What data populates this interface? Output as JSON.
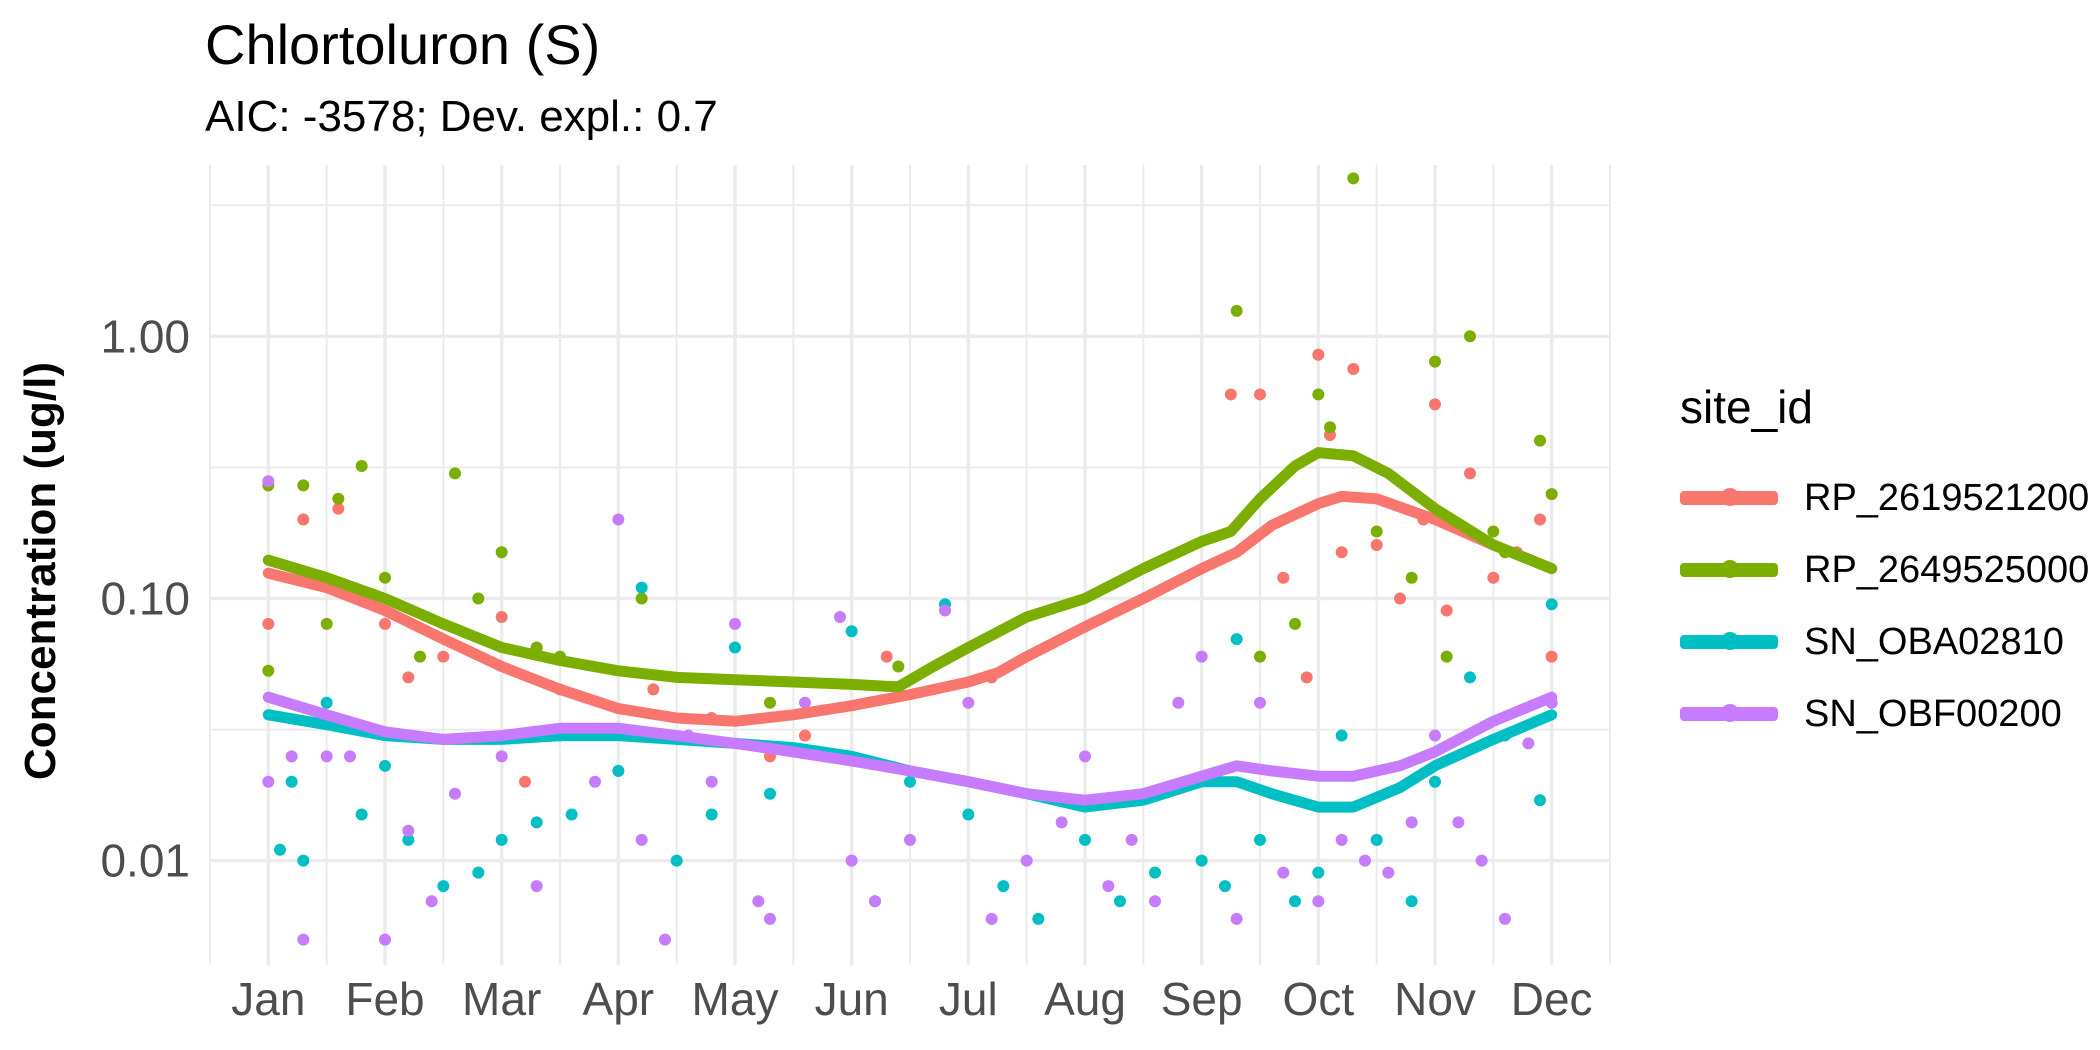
{
  "chart_data": {
    "type": "scatter",
    "title": "Chlortoluron (S)",
    "subtitle": "AIC: -3578; Dev. expl.: 0.7",
    "ylabel": "Concentration (ug/l)",
    "xlabel": "",
    "y_scale": "log10",
    "ylim": [
      0.004,
      4.5
    ],
    "y_ticks": [
      {
        "value": 1.0,
        "label": "1.00"
      },
      {
        "value": 0.1,
        "label": "0.10"
      },
      {
        "value": 0.01,
        "label": "0.01"
      }
    ],
    "x_ticks": [
      {
        "value": 1,
        "label": "Jan"
      },
      {
        "value": 2,
        "label": "Feb"
      },
      {
        "value": 3,
        "label": "Mar"
      },
      {
        "value": 4,
        "label": "Apr"
      },
      {
        "value": 5,
        "label": "May"
      },
      {
        "value": 6,
        "label": "Jun"
      },
      {
        "value": 7,
        "label": "Jul"
      },
      {
        "value": 8,
        "label": "Aug"
      },
      {
        "value": 9,
        "label": "Sep"
      },
      {
        "value": 10,
        "label": "Oct"
      },
      {
        "value": 11,
        "label": "Nov"
      },
      {
        "value": 12,
        "label": "Dec"
      }
    ],
    "xlim": [
      0.5,
      12.5
    ],
    "grid": true,
    "legend": {
      "title": "site_id",
      "position": "right"
    },
    "series": [
      {
        "name": "RP_2619521200",
        "color": "#F8766D",
        "trend": [
          [
            1.0,
            0.125
          ],
          [
            1.5,
            0.11
          ],
          [
            2.0,
            0.09
          ],
          [
            2.5,
            0.07
          ],
          [
            3.0,
            0.055
          ],
          [
            3.5,
            0.045
          ],
          [
            4.0,
            0.038
          ],
          [
            4.5,
            0.035
          ],
          [
            5.0,
            0.034
          ],
          [
            5.5,
            0.036
          ],
          [
            6.0,
            0.039
          ],
          [
            6.5,
            0.043
          ],
          [
            7.0,
            0.048
          ],
          [
            7.25,
            0.052
          ],
          [
            7.5,
            0.06
          ],
          [
            8.0,
            0.078
          ],
          [
            8.5,
            0.1
          ],
          [
            9.0,
            0.13
          ],
          [
            9.3,
            0.15
          ],
          [
            9.6,
            0.19
          ],
          [
            10.0,
            0.23
          ],
          [
            10.2,
            0.245
          ],
          [
            10.5,
            0.24
          ],
          [
            11.0,
            0.2
          ],
          [
            11.5,
            0.16
          ],
          [
            12.0,
            0.13
          ]
        ],
        "points": [
          [
            1.0,
            0.08
          ],
          [
            1.3,
            0.2
          ],
          [
            1.6,
            0.22
          ],
          [
            1.9,
            0.1
          ],
          [
            2.0,
            0.08
          ],
          [
            2.2,
            0.05
          ],
          [
            2.5,
            0.06
          ],
          [
            3.0,
            0.085
          ],
          [
            3.2,
            0.02
          ],
          [
            3.5,
            0.045
          ],
          [
            4.0,
            0.022
          ],
          [
            4.3,
            0.045
          ],
          [
            4.8,
            0.035
          ],
          [
            5.3,
            0.025
          ],
          [
            5.6,
            0.03
          ],
          [
            6.3,
            0.06
          ],
          [
            7.2,
            0.05
          ],
          [
            9.25,
            0.6
          ],
          [
            9.5,
            0.6
          ],
          [
            9.7,
            0.12
          ],
          [
            9.9,
            0.05
          ],
          [
            10.0,
            0.85
          ],
          [
            10.1,
            0.42
          ],
          [
            10.2,
            0.15
          ],
          [
            10.3,
            0.75
          ],
          [
            10.5,
            0.16
          ],
          [
            10.7,
            0.1
          ],
          [
            10.9,
            0.2
          ],
          [
            11.0,
            0.55
          ],
          [
            11.1,
            0.09
          ],
          [
            11.3,
            0.3
          ],
          [
            11.5,
            0.12
          ],
          [
            11.7,
            0.15
          ],
          [
            11.9,
            0.2
          ],
          [
            12.0,
            0.06
          ]
        ]
      },
      {
        "name": "RP_2649525000",
        "color": "#7CAE00",
        "trend": [
          [
            1.0,
            0.14
          ],
          [
            1.5,
            0.12
          ],
          [
            2.0,
            0.1
          ],
          [
            2.5,
            0.08
          ],
          [
            3.0,
            0.065
          ],
          [
            3.5,
            0.058
          ],
          [
            4.0,
            0.053
          ],
          [
            4.5,
            0.05
          ],
          [
            5.0,
            0.049
          ],
          [
            5.5,
            0.048
          ],
          [
            6.0,
            0.047
          ],
          [
            6.4,
            0.046
          ],
          [
            6.7,
            0.055
          ],
          [
            7.0,
            0.065
          ],
          [
            7.5,
            0.085
          ],
          [
            8.0,
            0.1
          ],
          [
            8.5,
            0.13
          ],
          [
            9.0,
            0.165
          ],
          [
            9.25,
            0.18
          ],
          [
            9.5,
            0.24
          ],
          [
            9.8,
            0.32
          ],
          [
            10.0,
            0.36
          ],
          [
            10.3,
            0.35
          ],
          [
            10.6,
            0.3
          ],
          [
            11.0,
            0.22
          ],
          [
            11.5,
            0.16
          ],
          [
            12.0,
            0.13
          ]
        ],
        "points": [
          [
            1.0,
            0.27
          ],
          [
            1.0,
            0.053
          ],
          [
            1.3,
            0.27
          ],
          [
            1.5,
            0.08
          ],
          [
            1.6,
            0.24
          ],
          [
            1.8,
            0.32
          ],
          [
            2.0,
            0.12
          ],
          [
            2.3,
            0.06
          ],
          [
            2.6,
            0.3
          ],
          [
            2.8,
            0.1
          ],
          [
            3.0,
            0.15
          ],
          [
            3.3,
            0.065
          ],
          [
            3.5,
            0.06
          ],
          [
            4.2,
            0.1
          ],
          [
            5.3,
            0.04
          ],
          [
            6.4,
            0.055
          ],
          [
            9.3,
            1.25
          ],
          [
            9.5,
            0.06
          ],
          [
            9.8,
            0.08
          ],
          [
            10.0,
            0.6
          ],
          [
            10.1,
            0.45
          ],
          [
            10.3,
            4.0
          ],
          [
            10.5,
            0.18
          ],
          [
            10.8,
            0.12
          ],
          [
            11.0,
            0.8
          ],
          [
            11.1,
            0.06
          ],
          [
            11.3,
            1.0
          ],
          [
            11.5,
            0.18
          ],
          [
            11.6,
            0.15
          ],
          [
            11.9,
            0.4
          ],
          [
            12.0,
            0.25
          ]
        ]
      },
      {
        "name": "SN_OBA02810",
        "color": "#00BFC4",
        "trend": [
          [
            1.0,
            0.036
          ],
          [
            1.5,
            0.033
          ],
          [
            2.0,
            0.03
          ],
          [
            2.5,
            0.029
          ],
          [
            3.0,
            0.029
          ],
          [
            3.5,
            0.03
          ],
          [
            4.0,
            0.03
          ],
          [
            4.5,
            0.029
          ],
          [
            5.0,
            0.028
          ],
          [
            5.5,
            0.027
          ],
          [
            6.0,
            0.025
          ],
          [
            6.5,
            0.022
          ],
          [
            7.0,
            0.02
          ],
          [
            7.5,
            0.018
          ],
          [
            8.0,
            0.016
          ],
          [
            8.5,
            0.017
          ],
          [
            9.0,
            0.02
          ],
          [
            9.3,
            0.02
          ],
          [
            9.6,
            0.018
          ],
          [
            10.0,
            0.016
          ],
          [
            10.3,
            0.016
          ],
          [
            10.7,
            0.019
          ],
          [
            11.0,
            0.023
          ],
          [
            11.5,
            0.029
          ],
          [
            12.0,
            0.036
          ]
        ],
        "points": [
          [
            1.1,
            0.011
          ],
          [
            1.2,
            0.02
          ],
          [
            1.3,
            0.01
          ],
          [
            1.5,
            0.04
          ],
          [
            1.8,
            0.015
          ],
          [
            2.0,
            0.023
          ],
          [
            2.2,
            0.012
          ],
          [
            2.5,
            0.008
          ],
          [
            2.8,
            0.009
          ],
          [
            3.0,
            0.012
          ],
          [
            3.3,
            0.014
          ],
          [
            3.6,
            0.015
          ],
          [
            4.0,
            0.022
          ],
          [
            4.2,
            0.11
          ],
          [
            4.5,
            0.01
          ],
          [
            4.8,
            0.015
          ],
          [
            5.0,
            0.065
          ],
          [
            5.3,
            0.018
          ],
          [
            5.8,
            0.025
          ],
          [
            6.0,
            0.075
          ],
          [
            6.2,
            0.007
          ],
          [
            6.5,
            0.02
          ],
          [
            6.8,
            0.095
          ],
          [
            7.0,
            0.015
          ],
          [
            7.3,
            0.008
          ],
          [
            7.6,
            0.006
          ],
          [
            8.0,
            0.012
          ],
          [
            8.3,
            0.007
          ],
          [
            8.6,
            0.009
          ],
          [
            9.0,
            0.01
          ],
          [
            9.2,
            0.008
          ],
          [
            9.3,
            0.07
          ],
          [
            9.5,
            0.012
          ],
          [
            9.8,
            0.007
          ],
          [
            10.0,
            0.009
          ],
          [
            10.2,
            0.03
          ],
          [
            10.5,
            0.012
          ],
          [
            10.8,
            0.007
          ],
          [
            11.0,
            0.02
          ],
          [
            11.3,
            0.05
          ],
          [
            11.6,
            0.03
          ],
          [
            11.9,
            0.017
          ],
          [
            12.0,
            0.095
          ]
        ]
      },
      {
        "name": "SN_OBF00200",
        "color": "#C77CFF",
        "trend": [
          [
            1.0,
            0.042
          ],
          [
            1.5,
            0.036
          ],
          [
            2.0,
            0.031
          ],
          [
            2.5,
            0.029
          ],
          [
            3.0,
            0.03
          ],
          [
            3.5,
            0.032
          ],
          [
            4.0,
            0.032
          ],
          [
            4.5,
            0.03
          ],
          [
            5.0,
            0.028
          ],
          [
            5.5,
            0.026
          ],
          [
            6.0,
            0.024
          ],
          [
            6.5,
            0.022
          ],
          [
            7.0,
            0.02
          ],
          [
            7.5,
            0.018
          ],
          [
            8.0,
            0.017
          ],
          [
            8.5,
            0.018
          ],
          [
            9.0,
            0.021
          ],
          [
            9.3,
            0.023
          ],
          [
            9.6,
            0.022
          ],
          [
            10.0,
            0.021
          ],
          [
            10.3,
            0.021
          ],
          [
            10.7,
            0.023
          ],
          [
            11.0,
            0.026
          ],
          [
            11.5,
            0.034
          ],
          [
            12.0,
            0.042
          ]
        ],
        "points": [
          [
            1.0,
            0.28
          ],
          [
            1.0,
            0.02
          ],
          [
            1.2,
            0.025
          ],
          [
            1.3,
            0.005
          ],
          [
            1.5,
            0.025
          ],
          [
            1.7,
            0.025
          ],
          [
            2.0,
            0.005
          ],
          [
            2.2,
            0.013
          ],
          [
            2.4,
            0.007
          ],
          [
            2.6,
            0.018
          ],
          [
            3.0,
            0.025
          ],
          [
            3.3,
            0.008
          ],
          [
            3.5,
            0.03
          ],
          [
            3.8,
            0.02
          ],
          [
            4.0,
            0.2
          ],
          [
            4.2,
            0.012
          ],
          [
            4.4,
            0.005
          ],
          [
            4.6,
            0.03
          ],
          [
            4.8,
            0.02
          ],
          [
            5.0,
            0.08
          ],
          [
            5.2,
            0.007
          ],
          [
            5.3,
            0.006
          ],
          [
            5.6,
            0.04
          ],
          [
            5.9,
            0.085
          ],
          [
            6.0,
            0.01
          ],
          [
            6.2,
            0.007
          ],
          [
            6.5,
            0.012
          ],
          [
            6.8,
            0.09
          ],
          [
            7.0,
            0.04
          ],
          [
            7.2,
            0.006
          ],
          [
            7.5,
            0.01
          ],
          [
            7.8,
            0.014
          ],
          [
            8.0,
            0.025
          ],
          [
            8.2,
            0.008
          ],
          [
            8.4,
            0.012
          ],
          [
            8.6,
            0.007
          ],
          [
            8.8,
            0.04
          ],
          [
            9.0,
            0.06
          ],
          [
            9.3,
            0.006
          ],
          [
            9.5,
            0.04
          ],
          [
            9.7,
            0.009
          ],
          [
            10.0,
            0.007
          ],
          [
            10.2,
            0.012
          ],
          [
            10.4,
            0.01
          ],
          [
            10.6,
            0.009
          ],
          [
            10.8,
            0.014
          ],
          [
            11.0,
            0.03
          ],
          [
            11.2,
            0.014
          ],
          [
            11.4,
            0.01
          ],
          [
            11.6,
            0.006
          ],
          [
            11.8,
            0.028
          ],
          [
            12.0,
            0.04
          ]
        ]
      }
    ]
  }
}
